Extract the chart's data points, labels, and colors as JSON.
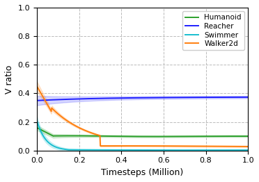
{
  "xlabel": "Timesteps (Million)",
  "ylabel": "V ratio",
  "xlim": [
    0.0,
    1.0
  ],
  "ylim": [
    0.0,
    1.0
  ],
  "yticks": [
    0.0,
    0.2,
    0.4,
    0.6,
    0.8,
    1.0
  ],
  "xticks": [
    0.0,
    0.2,
    0.4,
    0.6,
    0.8,
    1.0
  ],
  "legend_labels": [
    "Humanoid",
    "Reacher",
    "Swimmer",
    "Walker2d"
  ],
  "line_colors": [
    "#2ca02c",
    "#1f1fff",
    "#17becf",
    "#ff7f0e"
  ],
  "fill_alpha": 0.18,
  "grid_linestyle": "--",
  "grid_color": "#bbbbbb",
  "background_color": "#ffffff",
  "n_points": 500
}
